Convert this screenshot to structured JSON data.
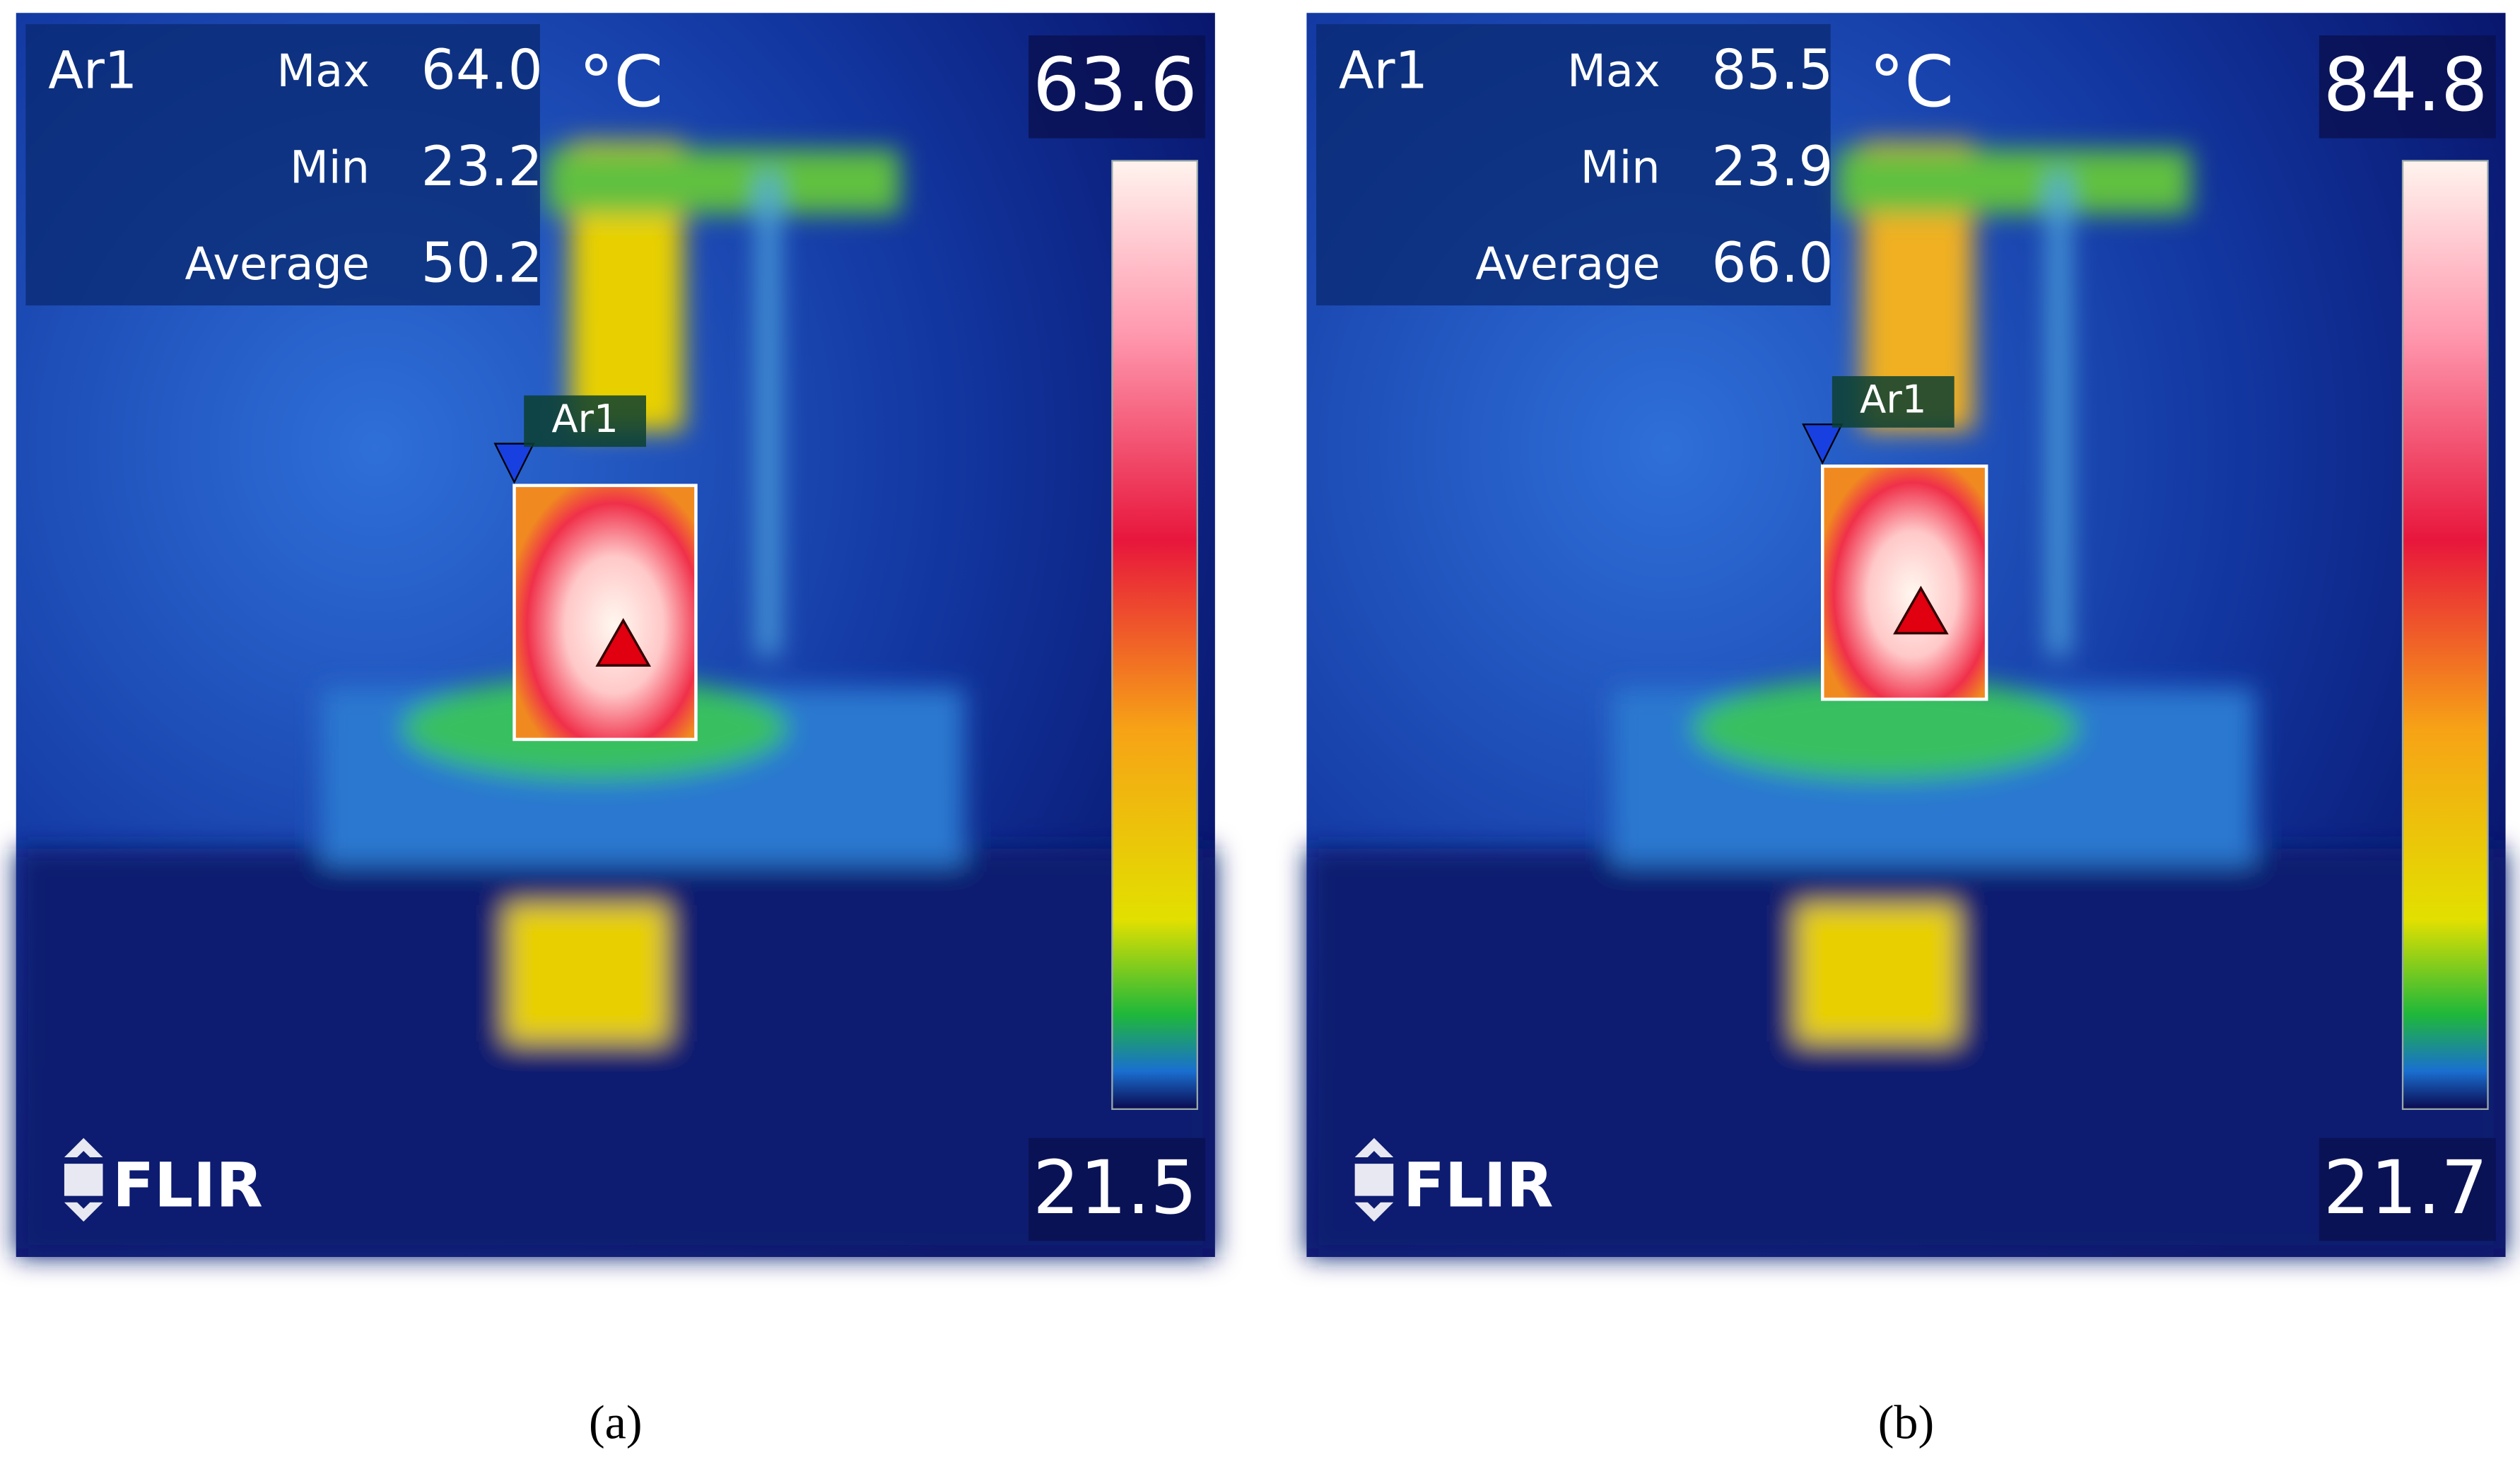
{
  "panels": [
    {
      "area_label": "Ar1",
      "stats": [
        {
          "label": "Max",
          "value": "64.0"
        },
        {
          "label": "Min",
          "value": "23.2"
        },
        {
          "label": "Average",
          "value": "50.2"
        }
      ],
      "unit": "°C",
      "scale_max": "63.6",
      "scale_min": "21.5",
      "area_tag": "Ar1",
      "logo": "FLIR",
      "caption": "(a)"
    },
    {
      "area_label": "Ar1",
      "stats": [
        {
          "label": "Max",
          "value": "85.5"
        },
        {
          "label": "Min",
          "value": "23.9"
        },
        {
          "label": "Average",
          "value": "66.0"
        }
      ],
      "unit": "°C",
      "scale_max": "84.8",
      "scale_min": "21.7",
      "area_tag": "Ar1",
      "logo": "FLIR",
      "caption": "(b)"
    }
  ]
}
